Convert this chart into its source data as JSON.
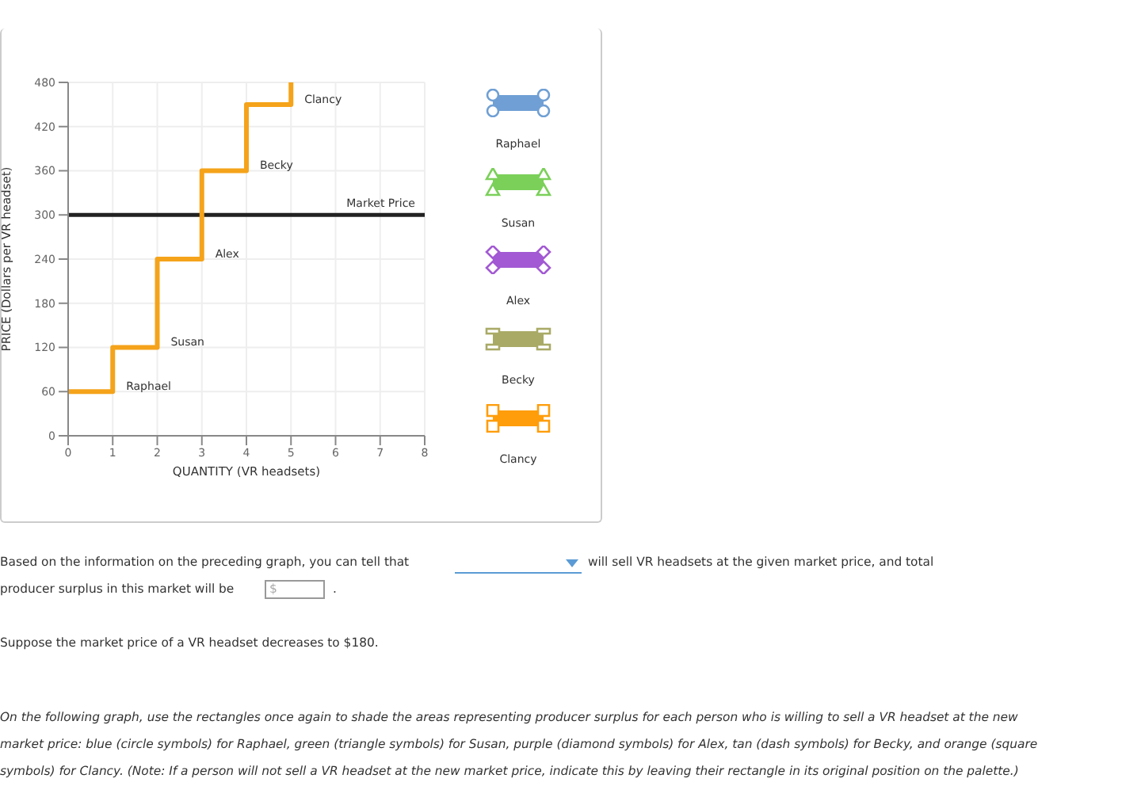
{
  "chart_data": {
    "type": "step",
    "xlabel": "QUANTITY (VR headsets)",
    "ylabel": "PRICE (Dollars per VR headset)",
    "x": [
      0,
      1,
      2,
      3,
      4,
      5
    ],
    "series": [
      {
        "color": "#f5a31a",
        "values": [
          60,
          120,
          240,
          360,
          450,
          480
        ]
      }
    ],
    "xlim": [
      0,
      8
    ],
    "xticks": [
      0,
      1,
      2,
      3,
      4,
      5,
      6,
      7,
      8
    ],
    "ylim": [
      0,
      480
    ],
    "yticks": [
      0,
      60,
      120,
      180,
      240,
      300,
      360,
      420,
      480
    ],
    "grid": true,
    "marker": "none",
    "line_style": "solid",
    "ref_lines": [
      {
        "axis": "y",
        "value": 300,
        "label": "Market Price",
        "color": "#222222"
      }
    ],
    "annotations": [
      "Raphael",
      "Susan",
      "Alex",
      "Becky",
      "Clancy",
      "Raphael",
      "Susan",
      "Alex",
      "Becky",
      "Clancy",
      "Based on the information on the preceding graph, you can tell that",
      "will sell VR headsets at the given market price, and total",
      "producer surplus in this market will be",
      "$",
      ".",
      "Suppose the market price of a VR headset decreases to $180.",
      "On the following graph, use the rectangles once again to shade the areas representing producer surplus for each person who is willing to sell a VR headset at the new market price: blue (circle symbols) for Raphael, green (triangle symbols) for Susan, purple (diamond symbols) for Alex, tan (dash symbols) for Becky, and orange (square symbols) for Clancy. (Note: If a person will not sell a VR headset at the new market price, indicate this by leaving their rectangle in its original position on the palette.)"
    ]
  }
}
